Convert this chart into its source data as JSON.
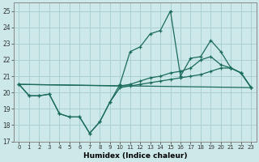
{
  "xlabel": "Humidex (Indice chaleur)",
  "background_color": "#cce8e8",
  "grid_color": "#aad0d0",
  "line_color": "#1a6b5a",
  "xlim": [
    -0.5,
    23.5
  ],
  "ylim": [
    17,
    25.5
  ],
  "yticks": [
    17,
    18,
    19,
    20,
    21,
    22,
    23,
    24,
    25
  ],
  "xticks": [
    0,
    1,
    2,
    3,
    4,
    5,
    6,
    7,
    8,
    9,
    10,
    11,
    12,
    13,
    14,
    15,
    16,
    17,
    18,
    19,
    20,
    21,
    22,
    23
  ],
  "line1_x": [
    0,
    1,
    2,
    3,
    4,
    5,
    6,
    7,
    8,
    9,
    10,
    11,
    12,
    13,
    14,
    15,
    16,
    17,
    18,
    19,
    20,
    21,
    22,
    23
  ],
  "line1_y": [
    20.5,
    19.8,
    19.8,
    19.9,
    18.7,
    18.5,
    18.5,
    17.5,
    18.2,
    19.4,
    20.5,
    22.5,
    22.8,
    23.6,
    23.8,
    25.0,
    21.0,
    22.1,
    22.2,
    23.2,
    22.5,
    21.5,
    21.2,
    20.3
  ],
  "line2_x": [
    0,
    10,
    11,
    12,
    13,
    14,
    15,
    16,
    17,
    18,
    19,
    20,
    21,
    22,
    23
  ],
  "line2_y": [
    20.5,
    20.4,
    20.5,
    20.7,
    20.9,
    21.0,
    21.2,
    21.3,
    21.5,
    22.0,
    22.2,
    21.7,
    21.5,
    21.2,
    20.3
  ],
  "line3_x": [
    0,
    1,
    2,
    3,
    4,
    5,
    6,
    7,
    8,
    9,
    10,
    11,
    12,
    13,
    14,
    15,
    16,
    17,
    18,
    19,
    20,
    21,
    22,
    23
  ],
  "line3_y": [
    20.5,
    19.8,
    19.8,
    19.9,
    18.7,
    18.5,
    18.5,
    17.5,
    18.2,
    19.4,
    20.3,
    20.4,
    20.5,
    20.6,
    20.7,
    20.8,
    20.9,
    21.0,
    21.1,
    21.3,
    21.5,
    21.5,
    21.2,
    20.3
  ],
  "line4_x": [
    0,
    23
  ],
  "line4_y": [
    20.5,
    20.3
  ]
}
